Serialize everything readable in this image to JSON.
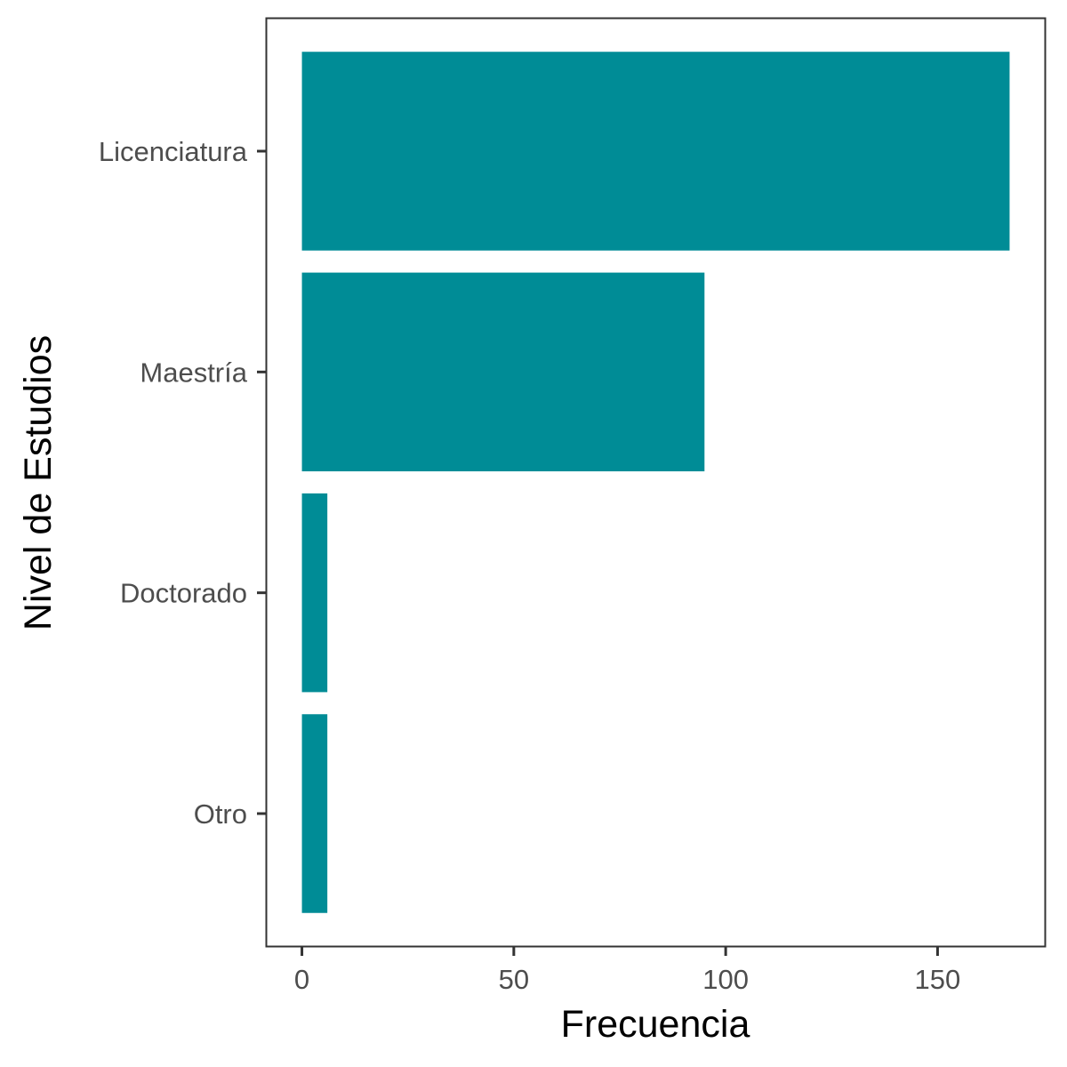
{
  "chart_data": {
    "type": "bar",
    "orientation": "horizontal",
    "categories": [
      "Licenciatura",
      "Maestría",
      "Doctorado",
      "Otro"
    ],
    "values": [
      167,
      95,
      6,
      6
    ],
    "xlabel": "Frecuencia",
    "ylabel": "Nivel de Estudios",
    "xticks": [
      0,
      50,
      100,
      150
    ],
    "xlim": [
      -8.3,
      175.3
    ],
    "grid": false,
    "bar_color": "#008C96",
    "panel_border_color": "#333333",
    "tick_label_color": "#4D4D4D"
  }
}
